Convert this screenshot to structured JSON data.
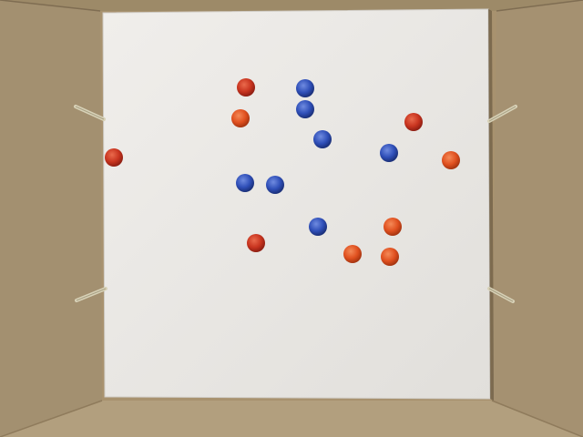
{
  "scene": {
    "subject": "box-with-board-and-beads",
    "colors": {
      "box_wall_left": "#a39070",
      "box_wall_right": "#a59171",
      "box_wall_top": "#9d8a68",
      "box_floor": "#b29f7e",
      "board": "#e9e7e4",
      "pin": "#d8d2b8",
      "bead_red": "#c8341f",
      "bead_orange": "#e0501f",
      "bead_blue": "#2f4fb8"
    },
    "red_bead_count": 9,
    "blue_bead_count": 7,
    "pin_count": 4
  }
}
